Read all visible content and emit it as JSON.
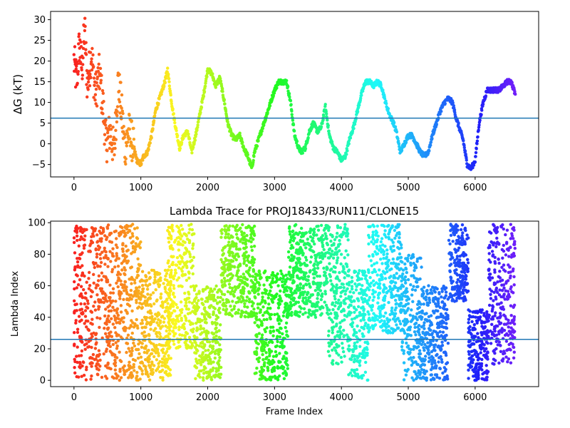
{
  "chart_data": [
    {
      "type": "scatter",
      "title": "",
      "xlabel": "",
      "ylabel": "ΔG (kT)",
      "xlim": [
        -350,
        6950
      ],
      "ylim": [
        -8,
        32
      ],
      "xticks": [
        0,
        1000,
        2000,
        3000,
        4000,
        5000,
        6000
      ],
      "yticks": [
        -5,
        0,
        5,
        10,
        15,
        20,
        25,
        30
      ],
      "xtick_labels": [
        "0",
        "1000",
        "2000",
        "3000",
        "4000",
        "5000",
        "6000"
      ],
      "ytick_labels": [
        "−5",
        "0",
        "5",
        "10",
        "15",
        "20",
        "25",
        "30"
      ],
      "hline": {
        "y": 6.2,
        "color": "#1f77b4"
      },
      "colormap": "rainbow (early frames red/orange → late frames violet)",
      "series": [
        {
          "x": [
            0,
            40,
            80,
            120,
            160,
            200,
            260,
            320,
            380,
            440,
            480,
            540,
            600,
            660,
            700,
            760,
            820,
            880,
            940,
            1000,
            1040,
            1100,
            1160,
            1220,
            1300,
            1360,
            1400,
            1460,
            1520,
            1580,
            1640,
            1700,
            1760,
            1820,
            1880,
            1940,
            2000,
            2060,
            2120,
            2180,
            2240,
            2300,
            2360,
            2420,
            2480,
            2540,
            2600,
            2660,
            2700,
            2760,
            2820,
            2880,
            2940,
            3000,
            3060,
            3120,
            3180,
            3240,
            3300,
            3360,
            3400,
            3460,
            3520,
            3580,
            3640,
            3700,
            3760,
            3820,
            3880,
            3940,
            4000,
            4060,
            4120,
            4180,
            4240,
            4300,
            4360,
            4420,
            4480,
            4540,
            4600,
            4660,
            4720,
            4780,
            4820,
            4880,
            4940,
            5000,
            5060,
            5120,
            5180,
            5240,
            5300,
            5360,
            5420,
            5480,
            5540,
            5600,
            5660,
            5720,
            5780,
            5820,
            5880,
            5940,
            6000,
            6060,
            6120,
            6180,
            6240,
            6300,
            6360,
            6420,
            6480,
            6540,
            6600
          ],
          "y": [
            20,
            15,
            24,
            18,
            28,
            14,
            22,
            12,
            17,
            8,
            0,
            3,
            -2,
            15,
            10,
            -1,
            3,
            0,
            -4,
            -5,
            -3,
            -2,
            2,
            8,
            12,
            15,
            18,
            10,
            4,
            -1,
            2,
            3,
            -2,
            2,
            7,
            12,
            18,
            17,
            14,
            16,
            11,
            5,
            2,
            1,
            2,
            -1,
            -3,
            -6,
            -2,
            1,
            4,
            7,
            10,
            13,
            15,
            15,
            15,
            10,
            2,
            -1,
            -2,
            -1,
            3,
            5,
            3,
            4,
            9,
            2,
            -1,
            -2,
            -4,
            -3,
            1,
            4,
            8,
            12,
            15,
            15,
            14,
            15,
            14,
            10,
            7,
            5,
            3,
            -2,
            0,
            2,
            2,
            0,
            -2,
            -3,
            -2,
            2,
            5,
            8,
            10,
            11,
            10,
            6,
            3,
            1,
            -5,
            -6,
            -4,
            5,
            10,
            13,
            13,
            13,
            13,
            14,
            15,
            15,
            12
          ]
        }
      ]
    },
    {
      "type": "scatter",
      "title": "Lambda Trace for PROJ18433/RUN11/CLONE15",
      "xlabel": "Frame Index",
      "ylabel": "Lambda Index",
      "xlim": [
        -350,
        6950
      ],
      "ylim": [
        -4,
        101
      ],
      "xticks": [
        0,
        1000,
        2000,
        3000,
        4000,
        5000,
        6000
      ],
      "yticks": [
        0,
        20,
        40,
        60,
        80,
        100
      ],
      "xtick_labels": [
        "0",
        "1000",
        "2000",
        "3000",
        "4000",
        "5000",
        "6000"
      ],
      "ytick_labels": [
        "0",
        "20",
        "40",
        "60",
        "80",
        "100"
      ],
      "hline": {
        "y": 26,
        "color": "#1f77b4"
      },
      "colormap": "rainbow (early frames red/orange → late frames violet)",
      "density_bands": [
        {
          "x_range": [
            0,
            1000
          ],
          "y_range": [
            0,
            99
          ]
        },
        {
          "x_range": [
            1000,
            1450
          ],
          "y_range": [
            0,
            70
          ]
        },
        {
          "x_range": [
            1400,
            1800
          ],
          "y_range": [
            20,
            99
          ]
        },
        {
          "x_range": [
            1800,
            2200
          ],
          "y_range": [
            0,
            60
          ]
        },
        {
          "x_range": [
            2200,
            2700
          ],
          "y_range": [
            40,
            99
          ]
        },
        {
          "x_range": [
            2700,
            3200
          ],
          "y_range": [
            0,
            70
          ]
        },
        {
          "x_range": [
            3200,
            3800
          ],
          "y_range": [
            40,
            99
          ]
        },
        {
          "x_range": [
            3800,
            4100
          ],
          "y_range": [
            10,
            99
          ]
        },
        {
          "x_range": [
            4100,
            4400
          ],
          "y_range": [
            0,
            70
          ]
        },
        {
          "x_range": [
            4400,
            4900
          ],
          "y_range": [
            30,
            99
          ]
        },
        {
          "x_range": [
            4900,
            5200
          ],
          "y_range": [
            0,
            80
          ]
        },
        {
          "x_range": [
            5200,
            5600
          ],
          "y_range": [
            0,
            60
          ]
        },
        {
          "x_range": [
            5600,
            5900
          ],
          "y_range": [
            50,
            99
          ]
        },
        {
          "x_range": [
            5900,
            6200
          ],
          "y_range": [
            0,
            45
          ]
        },
        {
          "x_range": [
            6200,
            6600
          ],
          "y_range": [
            10,
            99
          ]
        }
      ]
    }
  ]
}
